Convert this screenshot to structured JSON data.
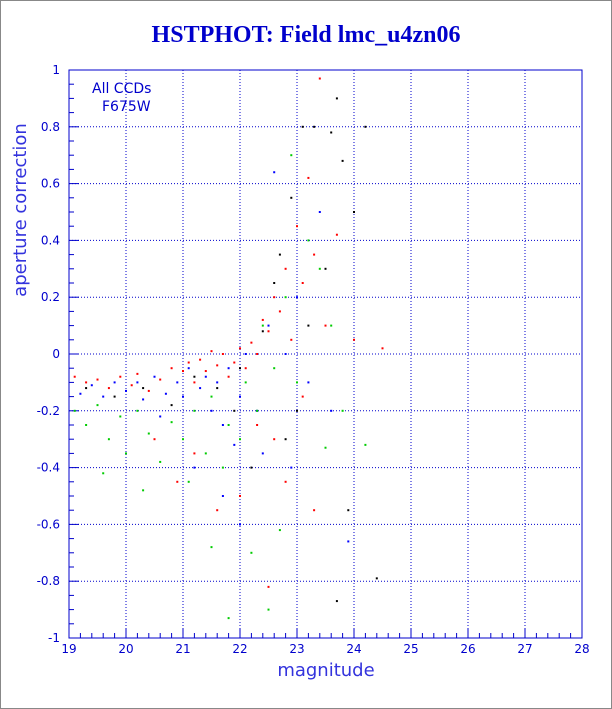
{
  "chart_data": {
    "type": "scatter",
    "title": "HSTPHOT: Field lmc_u4zn06",
    "xlabel": "magnitude",
    "ylabel": "aperture correction",
    "xlim": [
      19,
      28
    ],
    "ylim": [
      -1,
      1
    ],
    "x_ticks": [
      19,
      20,
      21,
      22,
      23,
      24,
      25,
      26,
      27,
      28
    ],
    "y_ticks": [
      -1,
      -0.8,
      -0.6,
      -0.4,
      -0.2,
      0,
      0.2,
      0.4,
      0.6,
      0.8,
      1
    ],
    "grid": true,
    "annotations": [
      "All CCDs",
      "F675W"
    ],
    "colors": {
      "axis": "#0000cc",
      "grid": "#0000cc",
      "title": "#0000cc"
    },
    "series": [
      {
        "color": "#ff0000",
        "points": [
          [
            19.1,
            -0.08
          ],
          [
            19.3,
            -0.1
          ],
          [
            19.5,
            -0.09
          ],
          [
            19.7,
            -0.12
          ],
          [
            19.9,
            -0.08
          ],
          [
            20.1,
            -0.11
          ],
          [
            20.2,
            -0.07
          ],
          [
            20.4,
            -0.13
          ],
          [
            20.6,
            -0.09
          ],
          [
            20.8,
            -0.05
          ],
          [
            21.0,
            -0.06
          ],
          [
            21.1,
            -0.03
          ],
          [
            21.2,
            -0.1
          ],
          [
            21.3,
            -0.02
          ],
          [
            21.4,
            -0.06
          ],
          [
            21.5,
            0.01
          ],
          [
            21.6,
            -0.04
          ],
          [
            21.7,
            0.0
          ],
          [
            21.8,
            -0.08
          ],
          [
            21.9,
            -0.03
          ],
          [
            22.0,
            0.02
          ],
          [
            22.1,
            -0.05
          ],
          [
            22.2,
            0.04
          ],
          [
            22.3,
            0.0
          ],
          [
            22.4,
            0.12
          ],
          [
            22.5,
            0.08
          ],
          [
            22.6,
            0.2
          ],
          [
            22.7,
            0.15
          ],
          [
            22.8,
            0.3
          ],
          [
            22.9,
            0.05
          ],
          [
            23.0,
            0.45
          ],
          [
            23.1,
            0.25
          ],
          [
            23.2,
            0.62
          ],
          [
            23.3,
            0.35
          ],
          [
            23.4,
            0.97
          ],
          [
            23.5,
            0.1
          ],
          [
            23.7,
            0.42
          ],
          [
            24.0,
            0.05
          ],
          [
            24.5,
            0.02
          ],
          [
            21.2,
            -0.35
          ],
          [
            21.6,
            -0.55
          ],
          [
            22.0,
            -0.5
          ],
          [
            22.3,
            -0.25
          ],
          [
            22.6,
            -0.3
          ],
          [
            22.8,
            -0.45
          ],
          [
            23.1,
            -0.15
          ],
          [
            23.3,
            -0.55
          ],
          [
            20.5,
            -0.3
          ],
          [
            20.9,
            -0.45
          ],
          [
            22.5,
            -0.82
          ]
        ]
      },
      {
        "color": "#0000ff",
        "points": [
          [
            19.2,
            -0.14
          ],
          [
            19.4,
            -0.11
          ],
          [
            19.6,
            -0.15
          ],
          [
            19.8,
            -0.1
          ],
          [
            20.0,
            -0.13
          ],
          [
            20.2,
            -0.1
          ],
          [
            20.3,
            -0.16
          ],
          [
            20.5,
            -0.08
          ],
          [
            20.7,
            -0.14
          ],
          [
            20.9,
            -0.1
          ],
          [
            21.0,
            -0.15
          ],
          [
            21.1,
            -0.05
          ],
          [
            21.3,
            -0.12
          ],
          [
            21.4,
            -0.08
          ],
          [
            21.5,
            -0.2
          ],
          [
            21.6,
            -0.1
          ],
          [
            21.7,
            -0.25
          ],
          [
            21.8,
            -0.05
          ],
          [
            22.0,
            -0.15
          ],
          [
            22.1,
            0.0
          ],
          [
            22.3,
            -0.2
          ],
          [
            22.5,
            0.1
          ],
          [
            22.6,
            0.64
          ],
          [
            22.8,
            0.0
          ],
          [
            23.0,
            0.2
          ],
          [
            23.2,
            -0.1
          ],
          [
            23.4,
            0.5
          ],
          [
            23.6,
            -0.2
          ],
          [
            21.2,
            -0.4
          ],
          [
            21.7,
            -0.5
          ],
          [
            22.0,
            -0.6
          ],
          [
            22.4,
            -0.35
          ],
          [
            23.9,
            -0.66
          ],
          [
            20.6,
            -0.22
          ],
          [
            21.9,
            -0.32
          ],
          [
            22.9,
            -0.4
          ]
        ]
      },
      {
        "color": "#00cc00",
        "points": [
          [
            19.1,
            -0.2
          ],
          [
            19.3,
            -0.25
          ],
          [
            19.5,
            -0.18
          ],
          [
            19.7,
            -0.3
          ],
          [
            19.9,
            -0.22
          ],
          [
            20.0,
            -0.35
          ],
          [
            20.2,
            -0.2
          ],
          [
            20.4,
            -0.28
          ],
          [
            20.6,
            -0.38
          ],
          [
            20.8,
            -0.24
          ],
          [
            21.0,
            -0.3
          ],
          [
            21.1,
            -0.45
          ],
          [
            21.2,
            -0.2
          ],
          [
            21.4,
            -0.35
          ],
          [
            21.5,
            -0.15
          ],
          [
            21.7,
            -0.4
          ],
          [
            21.8,
            -0.25
          ],
          [
            22.0,
            -0.3
          ],
          [
            22.1,
            -0.1
          ],
          [
            22.3,
            -0.2
          ],
          [
            22.4,
            0.1
          ],
          [
            22.6,
            -0.05
          ],
          [
            22.8,
            0.2
          ],
          [
            23.0,
            -0.1
          ],
          [
            23.2,
            0.4
          ],
          [
            23.4,
            0.3
          ],
          [
            23.6,
            0.1
          ],
          [
            23.8,
            -0.2
          ],
          [
            24.2,
            -0.32
          ],
          [
            22.9,
            0.7
          ],
          [
            22.5,
            -0.9
          ],
          [
            21.8,
            -0.93
          ],
          [
            22.2,
            -0.7
          ],
          [
            21.5,
            -0.68
          ],
          [
            20.3,
            -0.48
          ],
          [
            19.6,
            -0.42
          ],
          [
            22.7,
            -0.62
          ],
          [
            23.5,
            -0.33
          ]
        ]
      },
      {
        "color": "#000000",
        "points": [
          [
            19.3,
            -0.12
          ],
          [
            19.8,
            -0.15
          ],
          [
            20.3,
            -0.12
          ],
          [
            20.8,
            -0.18
          ],
          [
            21.2,
            -0.08
          ],
          [
            21.6,
            -0.12
          ],
          [
            22.0,
            -0.05
          ],
          [
            22.4,
            0.08
          ],
          [
            22.7,
            0.35
          ],
          [
            22.9,
            0.55
          ],
          [
            23.1,
            0.8
          ],
          [
            23.3,
            0.8
          ],
          [
            23.5,
            0.3
          ],
          [
            23.6,
            0.78
          ],
          [
            23.7,
            0.9
          ],
          [
            23.8,
            0.68
          ],
          [
            24.0,
            0.5
          ],
          [
            24.2,
            0.8
          ],
          [
            23.9,
            -0.55
          ],
          [
            23.7,
            -0.87
          ],
          [
            24.4,
            -0.79
          ],
          [
            22.2,
            -0.4
          ],
          [
            22.8,
            -0.3
          ],
          [
            23.0,
            -0.2
          ],
          [
            23.2,
            0.1
          ],
          [
            22.6,
            0.25
          ],
          [
            21.9,
            -0.2
          ]
        ]
      }
    ]
  }
}
